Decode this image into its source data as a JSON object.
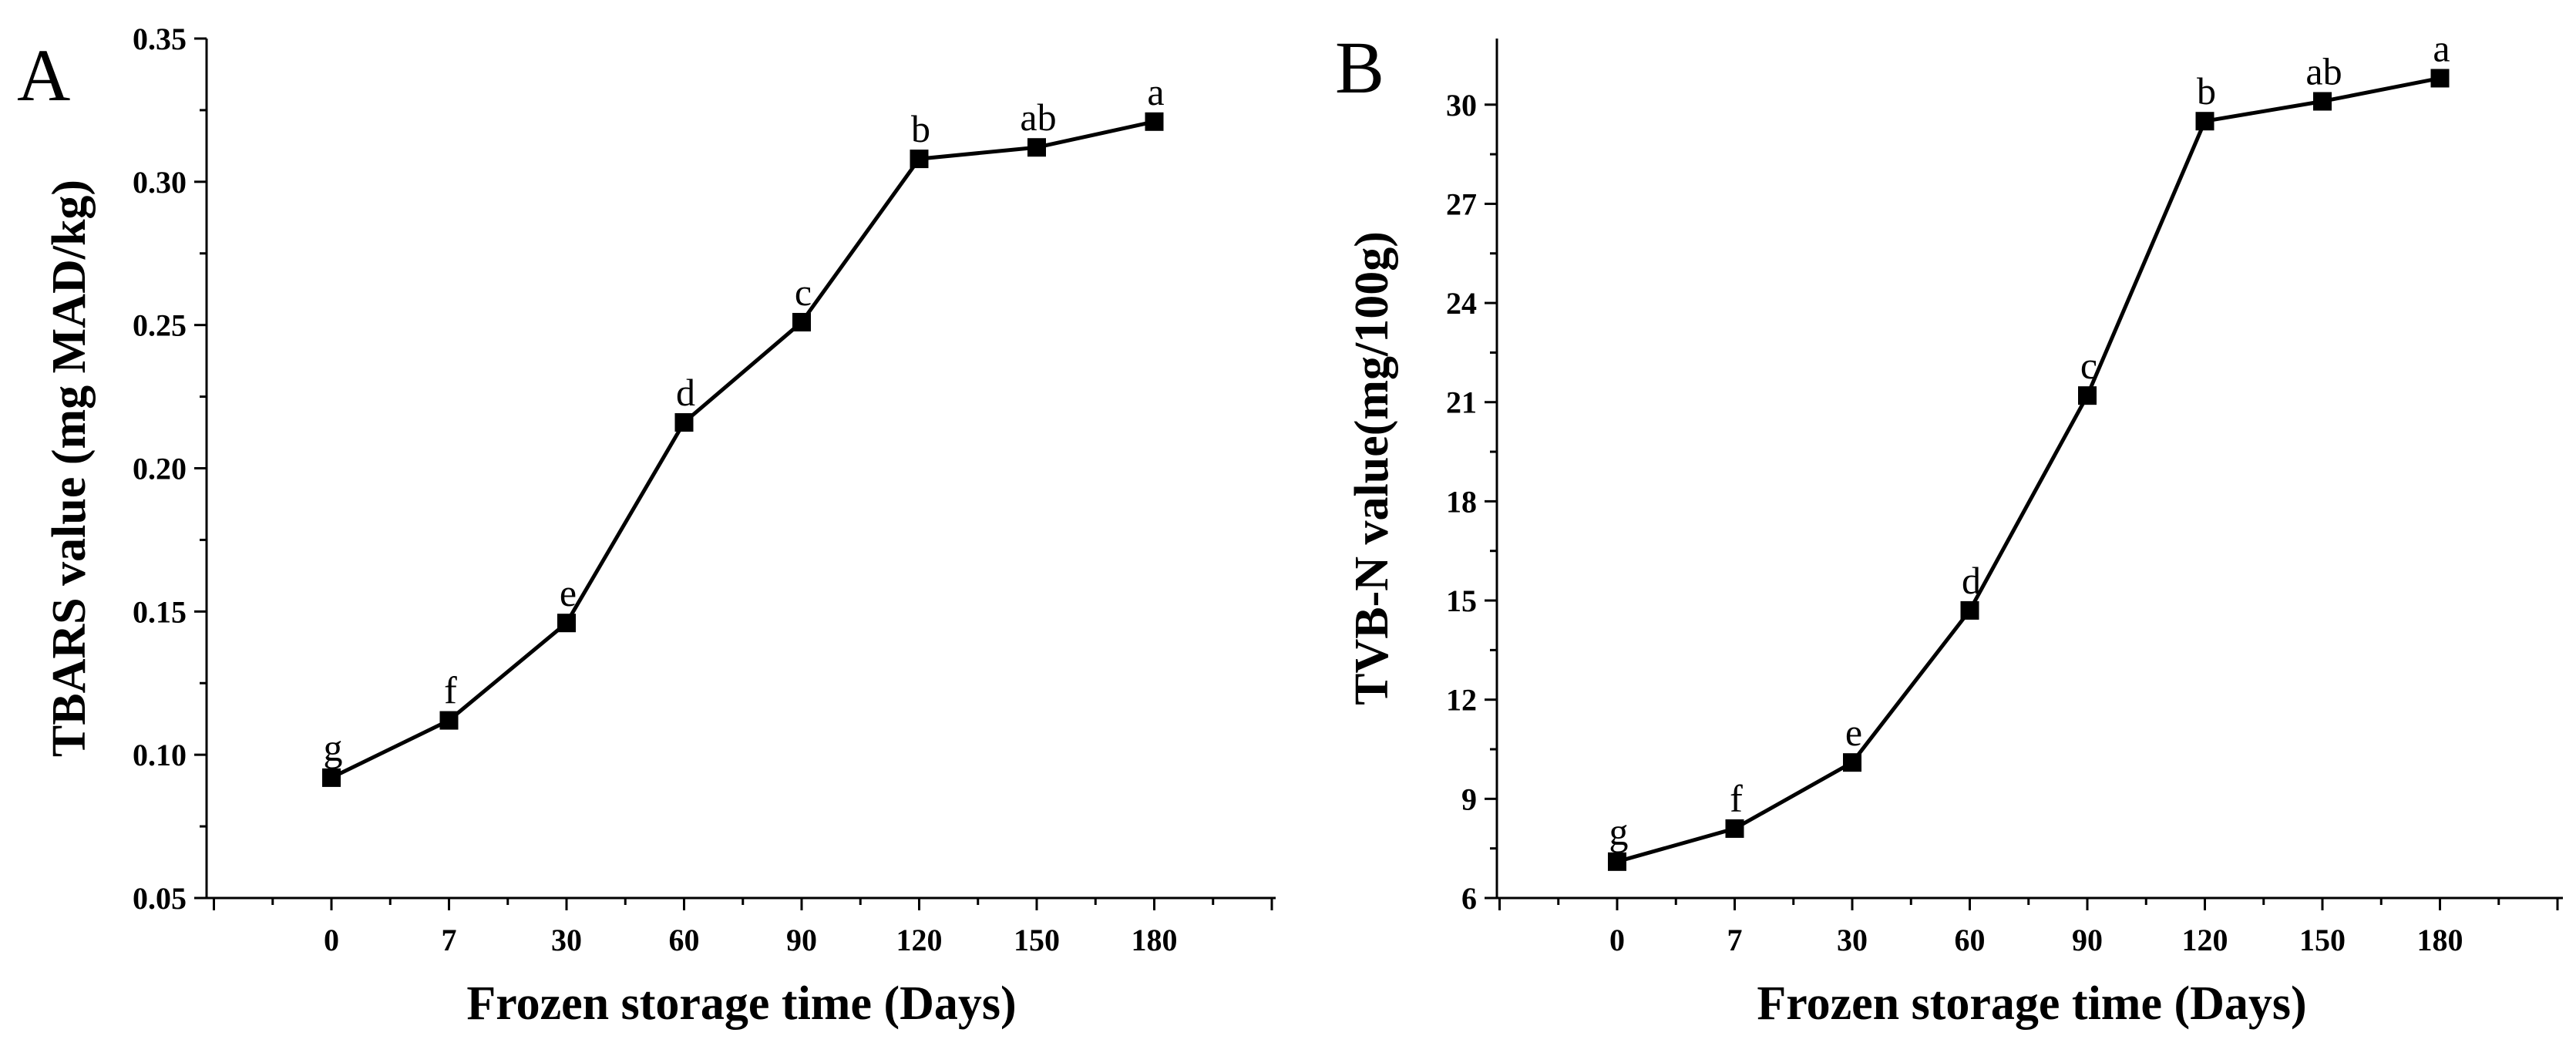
{
  "chart_data": [
    {
      "type": "line",
      "panel_label": "A",
      "xlabel": "Frozen storage time (Days)",
      "ylabel": "TBARS value (mg MAD/kg)",
      "categories": [
        "0",
        "7",
        "30",
        "60",
        "90",
        "120",
        "150",
        "180"
      ],
      "values": [
        0.092,
        0.112,
        0.146,
        0.216,
        0.251,
        0.308,
        0.312,
        0.321
      ],
      "significance": [
        "g",
        "f",
        "e",
        "d",
        "c",
        "b",
        "ab",
        "a"
      ],
      "ylim": [
        0.05,
        0.35
      ],
      "yticks": [
        "0.05",
        "0.10",
        "0.15",
        "0.20",
        "0.25",
        "0.30",
        "0.35"
      ],
      "marker": "square",
      "color": "#000000"
    },
    {
      "type": "line",
      "panel_label": "B",
      "xlabel": "Frozen storage time (Days)",
      "ylabel": "TVB-N value(mg/100g)",
      "categories": [
        "0",
        "7",
        "30",
        "60",
        "90",
        "120",
        "150",
        "180"
      ],
      "values": [
        7.1,
        8.1,
        10.1,
        14.7,
        21.2,
        29.5,
        30.1,
        30.8
      ],
      "significance": [
        "g",
        "f",
        "e",
        "d",
        "c",
        "b",
        "ab",
        "a"
      ],
      "ylim": [
        6,
        32
      ],
      "yticks": [
        "6",
        "9",
        "12",
        "15",
        "18",
        "21",
        "24",
        "27",
        "30"
      ],
      "marker": "square",
      "color": "#000000"
    }
  ]
}
